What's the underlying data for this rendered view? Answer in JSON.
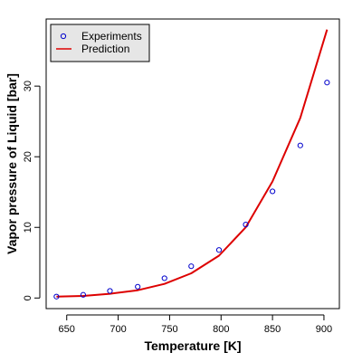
{
  "chart_data": {
    "type": "scatter",
    "xlabel": "Temperature [K]",
    "ylabel": "Vapor pressure of Liquid [bar]",
    "xlim": [
      630,
      915
    ],
    "ylim": [
      -1.5,
      39.5
    ],
    "xticks": [
      650,
      700,
      750,
      800,
      850,
      900
    ],
    "yticks": [
      0,
      10,
      20,
      30
    ],
    "grid": false,
    "legend_position": "top-left",
    "series": [
      {
        "name": "Experiments",
        "kind": "points",
        "marker": "o",
        "color": "#0000CC",
        "x": [
          640,
          666,
          692,
          719,
          745,
          771,
          798,
          824,
          850,
          877,
          903
        ],
        "y": [
          0.2,
          0.45,
          1.0,
          1.6,
          2.8,
          4.5,
          6.8,
          10.4,
          15.1,
          21.6,
          30.5
        ]
      },
      {
        "name": "Prediction",
        "kind": "line",
        "color": "#DD0000",
        "x": [
          640,
          666,
          692,
          719,
          745,
          771,
          798,
          824,
          850,
          877,
          903
        ],
        "y": [
          0.2,
          0.3,
          0.6,
          1.1,
          2.0,
          3.5,
          6.0,
          10.0,
          16.5,
          25.5,
          38.0
        ]
      }
    ]
  }
}
